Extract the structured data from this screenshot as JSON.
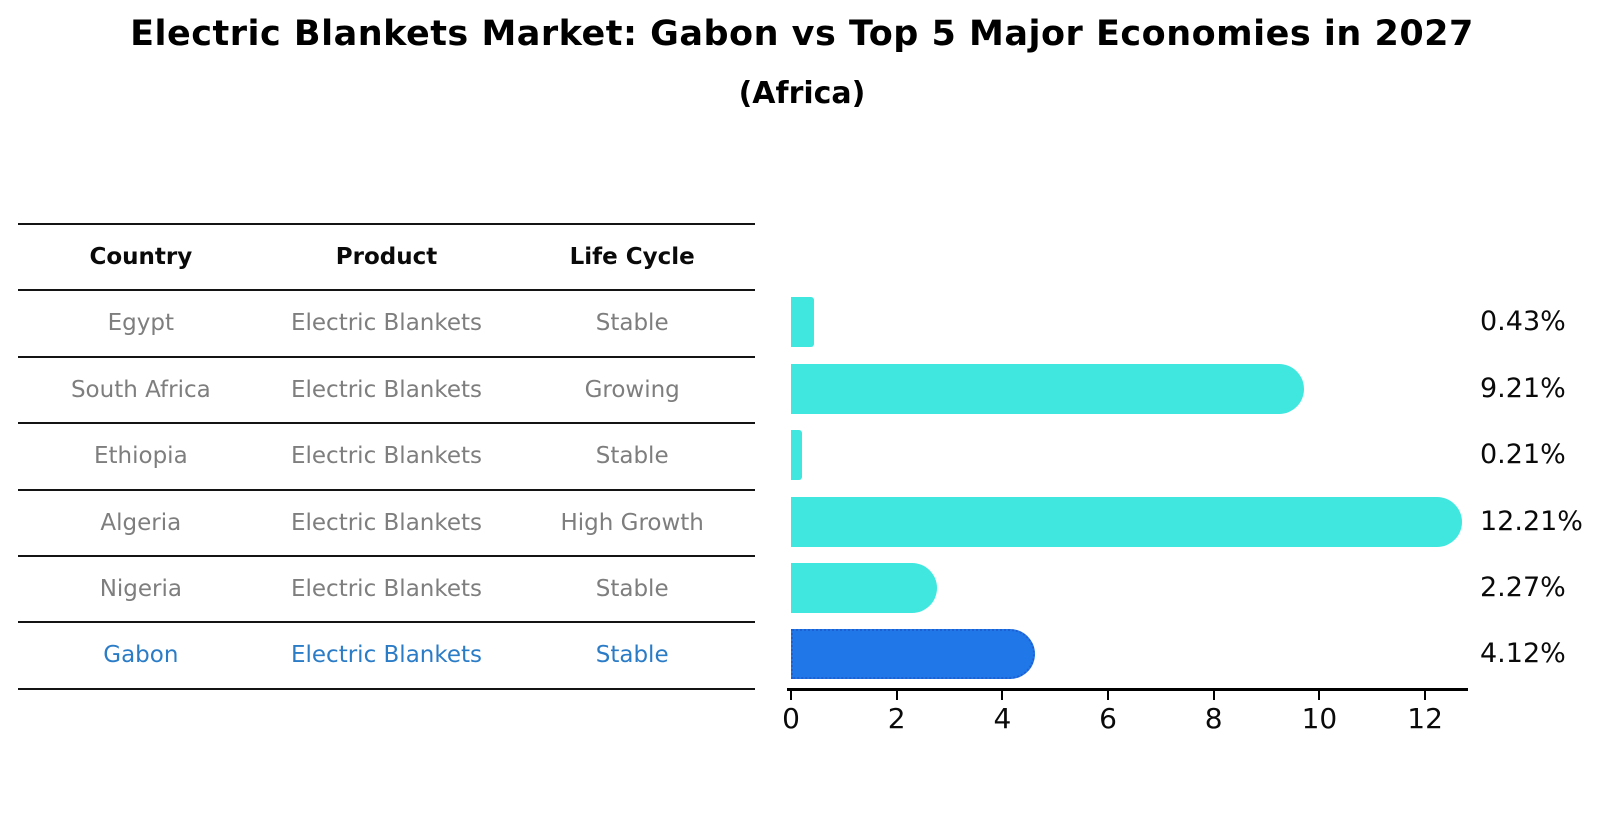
{
  "title": "Electric Blankets Market: Gabon vs Top 5 Major Economies in 2027",
  "subtitle": "(Africa)",
  "table": {
    "headers": [
      "Country",
      "Product",
      "Life Cycle"
    ],
    "rows": [
      {
        "country": "Egypt",
        "product": "Electric Blankets",
        "life_cycle": "Stable",
        "highlight": false
      },
      {
        "country": "South Africa",
        "product": "Electric Blankets",
        "life_cycle": "Growing",
        "highlight": false
      },
      {
        "country": "Ethiopia",
        "product": "Electric Blankets",
        "life_cycle": "Stable",
        "highlight": false
      },
      {
        "country": "Algeria",
        "product": "Electric Blankets",
        "life_cycle": "High Growth",
        "highlight": false
      },
      {
        "country": "Nigeria",
        "product": "Electric Blankets",
        "life_cycle": "Stable",
        "highlight": false
      },
      {
        "country": "Gabon",
        "product": "Electric Blankets",
        "life_cycle": "Stable",
        "highlight": true
      }
    ]
  },
  "chart_data": {
    "type": "bar",
    "orientation": "horizontal",
    "title": "Electric Blankets Market: Gabon vs Top 5 Major Economies in 2027",
    "subtitle": "(Africa)",
    "categories": [
      "Egypt",
      "South Africa",
      "Ethiopia",
      "Algeria",
      "Nigeria",
      "Gabon"
    ],
    "values": [
      0.43,
      9.21,
      0.21,
      12.21,
      2.27,
      4.12
    ],
    "value_labels": [
      "0.43%",
      "9.21%",
      "0.21%",
      "12.21%",
      "2.27%",
      "4.12%"
    ],
    "x_ticks": [
      "0",
      "2",
      "4",
      "6",
      "8",
      "10",
      "12"
    ],
    "xlim": [
      0,
      12.8
    ],
    "grid": false,
    "legend": false,
    "highlight_category": "Gabon",
    "colors": {
      "bar": "#3FE7DE",
      "highlight_bar": "#2077E8",
      "highlight_border": "#1E5FD2",
      "row_text": "#7E7E7E",
      "highlight_text": "#2B7CC7",
      "axis": "#000000"
    }
  }
}
